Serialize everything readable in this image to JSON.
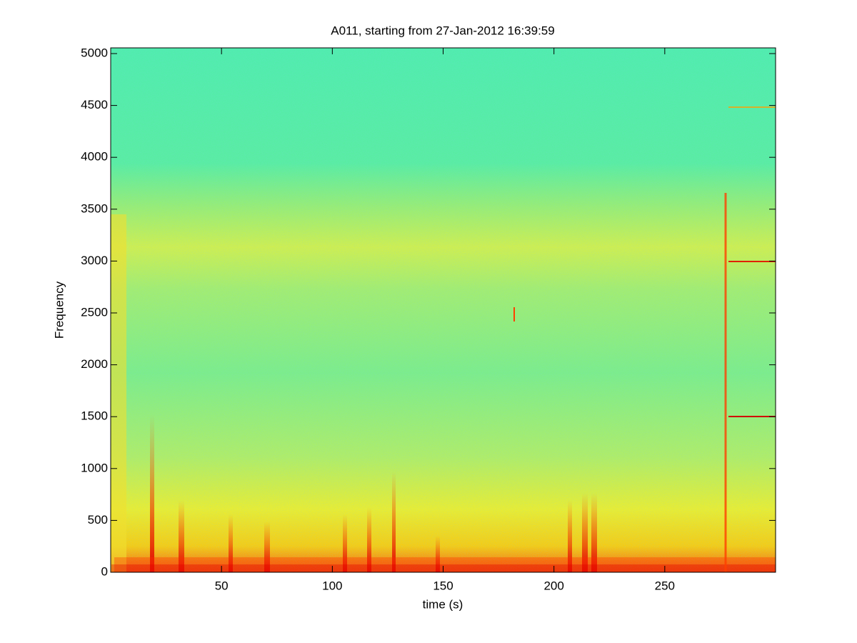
{
  "chart_data": {
    "type": "spectrogram",
    "title": "A011, starting from 27-Jan-2012 16:39:59",
    "x_label": "time (s)",
    "y_label": "Frequency",
    "xlim": [
      0,
      300
    ],
    "xticks": [
      50,
      100,
      150,
      200,
      250
    ],
    "ylim": [
      0,
      5055
    ],
    "yticks": [
      0,
      500,
      1000,
      1500,
      2000,
      2500,
      3000,
      3500,
      4000,
      4500,
      5000
    ]
  }
}
